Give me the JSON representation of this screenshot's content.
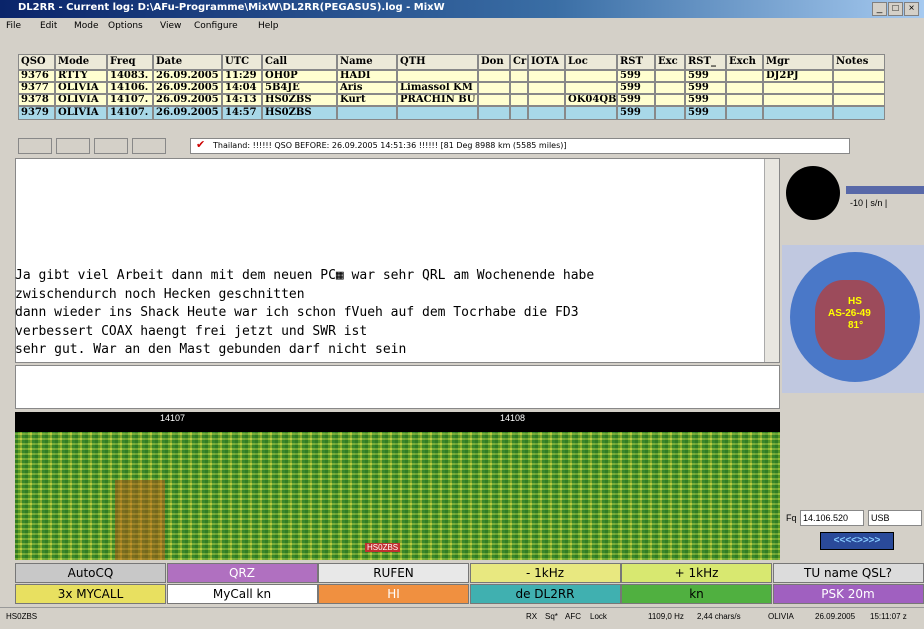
{
  "window": {
    "title": "DL2RR - Current log: D:\\AFu-Programme\\MixW\\DL2RR(PEGASUS).log - MixW",
    "controls": [
      "_",
      "□",
      "×"
    ]
  },
  "menu": [
    "File",
    "Edit",
    "Mode",
    "Options",
    "View",
    "Configure",
    "Help"
  ],
  "log": {
    "headers": [
      "QSO",
      "Mode",
      "Freq",
      "Date",
      "UTC",
      "Call",
      "Name",
      "QTH",
      "Don",
      "Cr",
      "IOTA",
      "Loc",
      "RST",
      "Exc",
      "RST_",
      "Exch",
      "Mgr",
      "Notes"
    ],
    "rows": [
      [
        "9376",
        "RTTY",
        "14083.",
        "26.09.2005",
        "11:29",
        "OH0P",
        "HADI",
        null,
        null,
        null,
        null,
        null,
        "599",
        null,
        "599",
        null,
        "DJ2PJ",
        null
      ],
      [
        "9377",
        "OLIVIA",
        "14106.",
        "26.09.2005",
        "14:04",
        "5B4JE",
        "Aris",
        "Limassol KM",
        null,
        null,
        null,
        null,
        "599",
        null,
        "599",
        null,
        null,
        null
      ],
      [
        "9378",
        "OLIVIA",
        "14107.",
        "26.09.2005",
        "14:13",
        "HS0ZBS",
        "Kurt",
        "PRACHIN BU",
        null,
        null,
        null,
        "OK04QB",
        "599",
        null,
        "599",
        null,
        null,
        null
      ],
      [
        "9379",
        "OLIVIA",
        "14107.",
        "26.09.2005",
        "14:57",
        "HS0ZBS",
        null,
        null,
        null,
        null,
        null,
        null,
        "599",
        null,
        "599",
        null,
        null,
        null
      ]
    ]
  },
  "toolbar": {
    "info": "Thailand: !!!!!! QSO BEFORE: 26.09.2005 14:51:36 !!!!!! [81 Deg 8988 km (5585 miles)]"
  },
  "receive": {
    "lines": [
      "Ja gibt viel Arbeit dann mit dem neuen PC▦ war sehr QRL am Wochenende habe",
      "zwischendurch noch Hecken geschnitten",
      "dann wieder ins Shack Heute war ich schon fVueh auf dem Tocrhabe die FD3",
      "verbessert COAX haengt frei jetzt und SWR ist",
      "sehr gut. War an den Mast gebunden darf nicht sein"
    ]
  },
  "waterfall": {
    "scale": [
      "14107",
      "14108"
    ],
    "marker": "HS0ZBS"
  },
  "side": {
    "meter": "-10 | s/n |",
    "globe": [
      "HS",
      "AS-26-49",
      "81°"
    ],
    "freq_label": "Fq",
    "freq": "14.106.520",
    "mode": "USB",
    "tune": "<<<<>>>>"
  },
  "macros": [
    [
      "AutoCQ",
      "QRZ",
      "RUFEN",
      "- 1kHz",
      "+ 1kHz",
      "TU name QSL?"
    ],
    [
      "3x MYCALL",
      "MyCall kn",
      "HI",
      "de DL2RR",
      "kn",
      "PSK  20m"
    ]
  ],
  "status": {
    "call": "HS0ZBS",
    "items": [
      "RX",
      "Sq*",
      "AFC",
      "Lock",
      "1109,0 Hz",
      "2,44 chars/s",
      "OLIVIA",
      "26.09.2005",
      "15:11:07 z"
    ]
  }
}
